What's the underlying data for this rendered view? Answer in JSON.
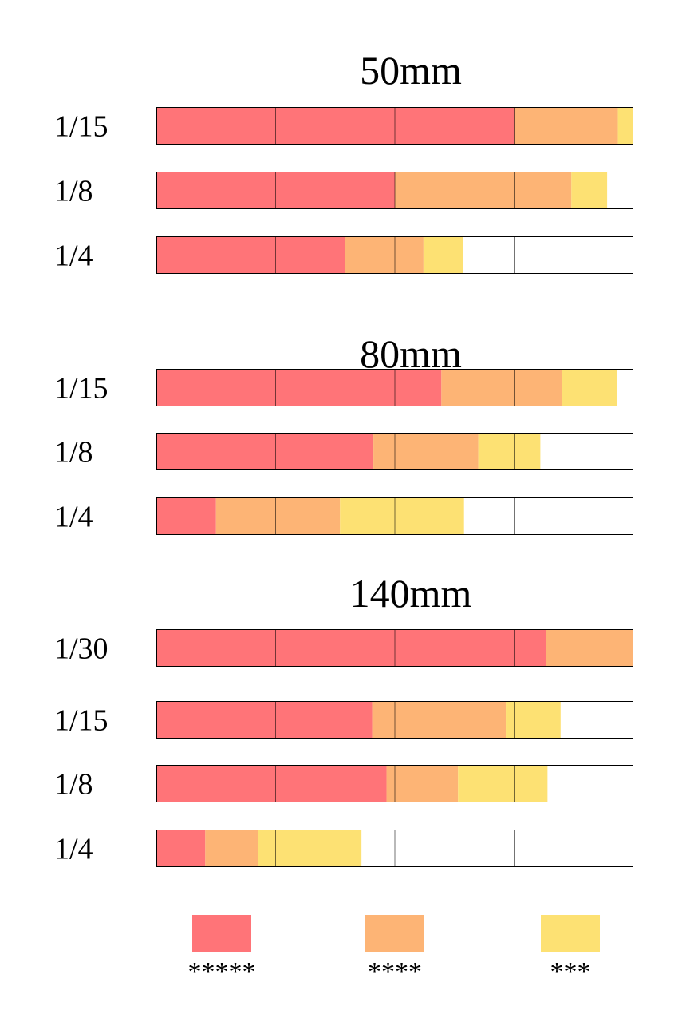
{
  "chart_data": {
    "type": "bar",
    "stacked": true,
    "orientation": "horizontal",
    "xlim": [
      0,
      4
    ],
    "grid": true,
    "legend_placement": "bottom",
    "series": [
      {
        "legend_label": "*****",
        "color": "#FF7478"
      },
      {
        "legend_label": "****",
        "color": "#FDB475"
      },
      {
        "legend_label": "***",
        "color": "#FDE173"
      }
    ],
    "groups": [
      {
        "title": "50mm",
        "rows": [
          {
            "label": "1/15",
            "values": [
              3.0,
              0.87,
              0.13
            ]
          },
          {
            "label": "1/8",
            "values": [
              2.0,
              1.48,
              0.3
            ]
          },
          {
            "label": "1/4",
            "values": [
              1.58,
              0.66,
              0.33
            ]
          }
        ]
      },
      {
        "title": "80mm",
        "rows": [
          {
            "label": "1/15",
            "values": [
              2.39,
              1.01,
              0.46
            ]
          },
          {
            "label": "1/8",
            "values": [
              1.82,
              0.88,
              0.52
            ]
          },
          {
            "label": "1/4",
            "values": [
              0.5,
              1.04,
              1.04
            ]
          }
        ]
      },
      {
        "title": "140mm",
        "rows": [
          {
            "label": "1/30",
            "values": [
              3.27,
              0.73,
              0.0
            ]
          },
          {
            "label": "1/15",
            "values": [
              1.81,
              1.12,
              0.46
            ]
          },
          {
            "label": "1/8",
            "values": [
              1.93,
              0.6,
              0.75
            ]
          },
          {
            "label": "1/4",
            "values": [
              0.41,
              0.44,
              0.87
            ]
          }
        ]
      }
    ]
  }
}
